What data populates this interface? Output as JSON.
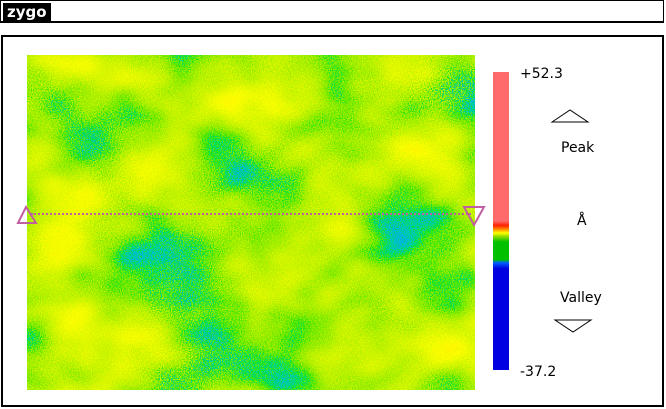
{
  "app": {
    "logo_text": "zygo"
  },
  "surface_map": {
    "scale_max": "+52.3",
    "scale_min": "-37.2",
    "unit": "Å",
    "peak_label": "Peak",
    "valley_label": "Valley",
    "colormap": [
      "#0000e0",
      "#0060ff",
      "#00c000",
      "#a0e000",
      "#ffff00",
      "#ffa000",
      "#ff2000"
    ],
    "colorbar_top_color": "#ff6b6b",
    "profile_line_color": "#c060a0"
  }
}
